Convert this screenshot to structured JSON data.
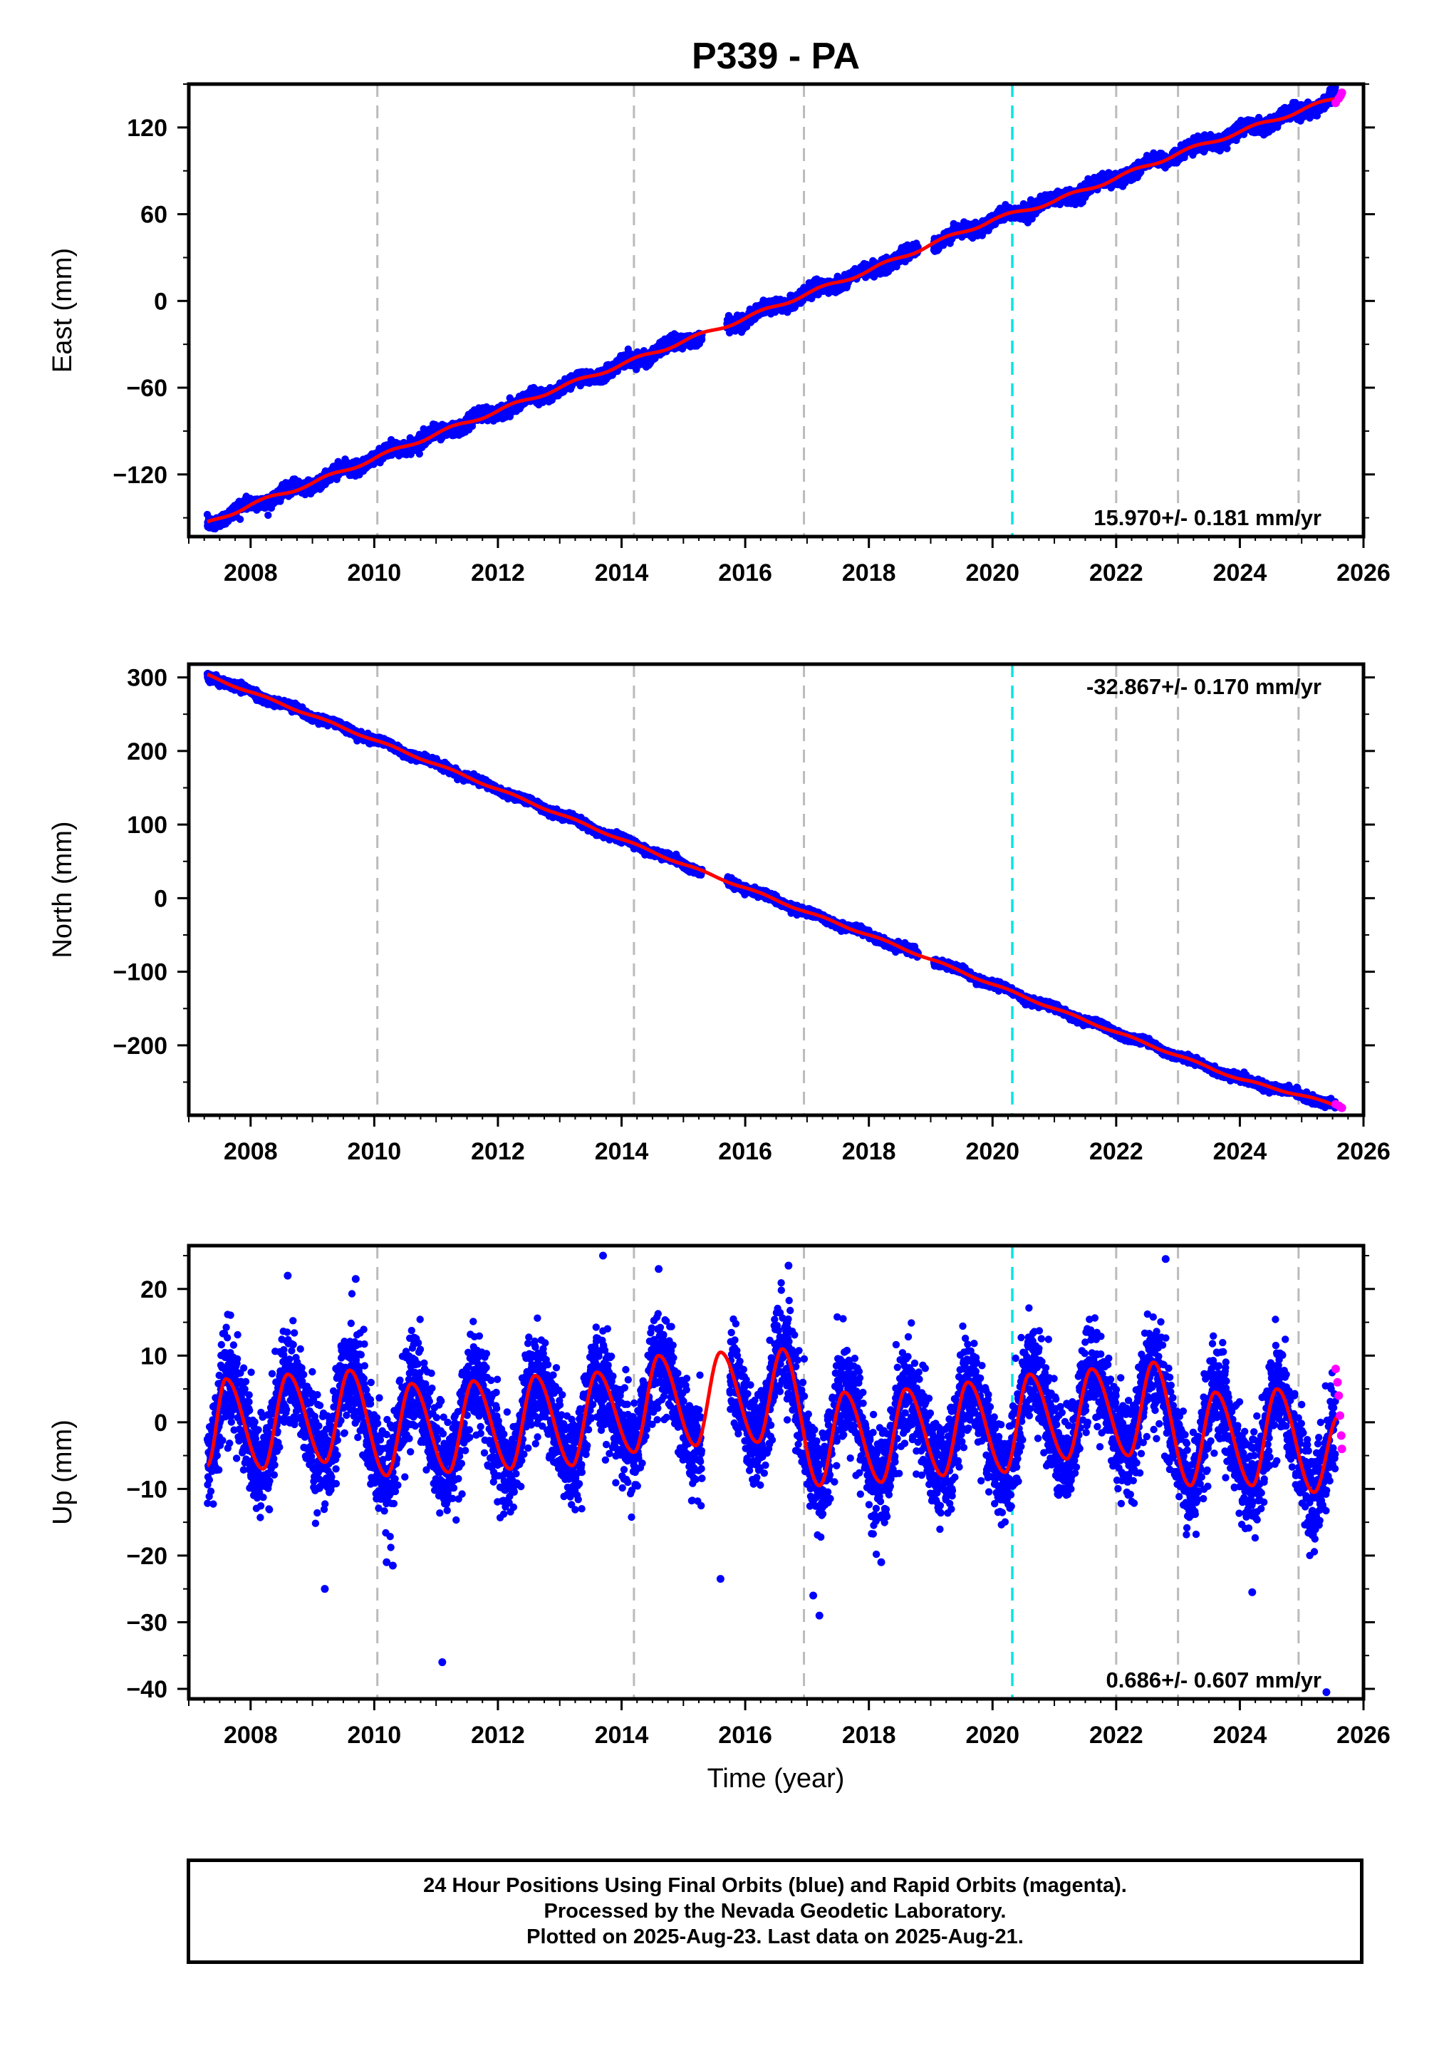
{
  "title": "P339 - PA",
  "xlabel": "Time (year)",
  "x_ticks": [
    "2008",
    "2010",
    "2012",
    "2014",
    "2016",
    "2018",
    "2020",
    "2022",
    "2024",
    "2026"
  ],
  "colors": {
    "final_orbits": "#0000ff",
    "rapid_orbits": "#ff00ff",
    "model": "#ff0000",
    "equipment_change": "#bbbbbb",
    "earthquake": "#00e5e5"
  },
  "footer": {
    "line1": "24 Hour Positions Using Final Orbits (blue) and Rapid Orbits (magenta).",
    "line2": "Processed by the Nevada Geodetic Laboratory.",
    "line3": "Plotted on 2025-Aug-23. Last data on 2025-Aug-21."
  },
  "chart_data": [
    {
      "type": "scatter",
      "component": "East",
      "ylabel": "East (mm)",
      "xlim": [
        2007.0,
        2026.0
      ],
      "ylim": [
        -163,
        150
      ],
      "yticks": [
        "120",
        "60",
        "0",
        "−60",
        "−120"
      ],
      "ytick_values": [
        120,
        60,
        0,
        -60,
        -120
      ],
      "rate_label": "15.970+/- 0.181 mm/yr",
      "rate_label_position": "bottom-right",
      "velocity": 15.97,
      "x": [
        2007.3,
        2008.0,
        2009.0,
        2010.0,
        2011.0,
        2012.0,
        2013.0,
        2014.0,
        2015.0,
        2016.0,
        2017.0,
        2018.0,
        2019.0,
        2020.0,
        2021.0,
        2022.0,
        2023.0,
        2024.0,
        2025.0,
        2025.6
      ],
      "y": [
        -154,
        -141,
        -126,
        -109,
        -92,
        -76,
        -60,
        -44,
        -28,
        -12,
        5,
        21,
        39,
        56,
        69,
        85,
        102,
        117,
        132,
        141
      ],
      "model": {
        "type": "line",
        "x": [
          2007.3,
          2008.0,
          2009.0,
          2010.0,
          2011.0,
          2012.0,
          2013.0,
          2014.0,
          2015.0,
          2016.0,
          2017.0,
          2018.0,
          2019.0,
          2020.0,
          2021.0,
          2022.0,
          2023.0,
          2024.0,
          2025.0,
          2025.6
        ],
        "y": [
          -154,
          -141,
          -126,
          -109,
          -92,
          -76,
          -60,
          -44,
          -28,
          -12,
          5,
          21,
          39,
          56,
          69,
          85,
          102,
          117,
          132,
          141
        ]
      },
      "rapid_orbit_points": {
        "x": [
          2025.55,
          2025.6,
          2025.63,
          2025.65
        ],
        "y": [
          137,
          140,
          142,
          144
        ]
      },
      "equipment_changes": [
        2010.05,
        2014.2,
        2016.95,
        2022.0,
        2023.0,
        2024.95
      ],
      "earthquakes": [
        2020.32
      ]
    },
    {
      "type": "scatter",
      "component": "North",
      "ylabel": "North (mm)",
      "xlim": [
        2007.0,
        2026.0
      ],
      "ylim": [
        -295,
        318
      ],
      "yticks": [
        "300",
        "200",
        "100",
        "0",
        "−100",
        "−200"
      ],
      "ytick_values": [
        300,
        200,
        100,
        0,
        -100,
        -200
      ],
      "rate_label": "-32.867+/- 0.170 mm/yr",
      "rate_label_position": "top-right",
      "velocity": -32.867,
      "x": [
        2007.3,
        2008.0,
        2009.0,
        2010.0,
        2011.0,
        2012.0,
        2013.0,
        2014.0,
        2015.0,
        2016.0,
        2017.0,
        2018.0,
        2019.0,
        2020.0,
        2021.0,
        2022.0,
        2023.0,
        2024.0,
        2025.0,
        2025.6
      ],
      "y": [
        303,
        280,
        248,
        215,
        182,
        148,
        114,
        80,
        46,
        14,
        -19,
        -50,
        -83,
        -117,
        -150,
        -182,
        -214,
        -246,
        -268,
        -283
      ],
      "model": {
        "type": "line",
        "x": [
          2007.3,
          2008.0,
          2009.0,
          2010.0,
          2011.0,
          2012.0,
          2013.0,
          2014.0,
          2015.0,
          2016.0,
          2017.0,
          2018.0,
          2019.0,
          2020.0,
          2021.0,
          2022.0,
          2023.0,
          2024.0,
          2025.0,
          2025.6
        ],
        "y": [
          303,
          280,
          248,
          215,
          182,
          148,
          114,
          80,
          46,
          14,
          -19,
          -50,
          -83,
          -117,
          -150,
          -182,
          -214,
          -246,
          -268,
          -283
        ]
      },
      "rapid_orbit_points": {
        "x": [
          2025.55,
          2025.6,
          2025.63,
          2025.65
        ],
        "y": [
          -280,
          -282,
          -284,
          -285
        ]
      },
      "equipment_changes": [
        2010.05,
        2014.2,
        2016.95,
        2022.0,
        2023.0,
        2024.95
      ],
      "earthquakes": [
        2020.32
      ]
    },
    {
      "type": "scatter",
      "component": "Up",
      "ylabel": "Up (mm)",
      "xlim": [
        2007.0,
        2026.0
      ],
      "ylim": [
        -41.5,
        26.5
      ],
      "yticks": [
        "20",
        "10",
        "0",
        "−10",
        "−20",
        "−30",
        "−40"
      ],
      "ytick_values": [
        20,
        10,
        0,
        -10,
        -20,
        -30,
        -40
      ],
      "rate_label": "0.686+/- 0.607 mm/yr",
      "rate_label_position": "bottom-right",
      "velocity": 0.686,
      "seasonal_peaks": [
        [
          2007.6,
          6.5
        ],
        [
          2008.6,
          7.2
        ],
        [
          2009.6,
          7.8
        ],
        [
          2010.6,
          5.8
        ],
        [
          2011.6,
          6.2
        ],
        [
          2012.6,
          7.0
        ],
        [
          2013.6,
          7.5
        ],
        [
          2014.6,
          10.0
        ],
        [
          2015.6,
          10.5
        ],
        [
          2016.6,
          11.0
        ],
        [
          2017.6,
          4.5
        ],
        [
          2018.6,
          5.0
        ],
        [
          2019.6,
          6.0
        ],
        [
          2020.6,
          7.2
        ],
        [
          2021.6,
          8.0
        ],
        [
          2022.6,
          9.0
        ],
        [
          2023.6,
          4.5
        ],
        [
          2024.6,
          5.0
        ]
      ],
      "seasonal_troughs": [
        [
          2007.3,
          -6.5
        ],
        [
          2008.2,
          -7.0
        ],
        [
          2009.2,
          -6.0
        ],
        [
          2010.2,
          -8.0
        ],
        [
          2011.2,
          -7.5
        ],
        [
          2012.2,
          -7.0
        ],
        [
          2013.2,
          -6.5
        ],
        [
          2014.2,
          -4.5
        ],
        [
          2015.2,
          -3.5
        ],
        [
          2016.2,
          -3.0
        ],
        [
          2017.2,
          -9.5
        ],
        [
          2018.2,
          -9.0
        ],
        [
          2019.2,
          -8.0
        ],
        [
          2020.2,
          -7.5
        ],
        [
          2021.2,
          -5.5
        ],
        [
          2022.2,
          -5.0
        ],
        [
          2023.2,
          -9.5
        ],
        [
          2024.2,
          -9.5
        ],
        [
          2025.2,
          -10.5
        ],
        [
          2025.6,
          1.0
        ]
      ],
      "outliers": {
        "x": [
          2008.6,
          2009.2,
          2009.7,
          2010.2,
          2010.3,
          2011.1,
          2013.7,
          2014.6,
          2015.6,
          2016.7,
          2017.1,
          2017.2,
          2018.2,
          2022.8,
          2024.2,
          2025.4
        ],
        "y": [
          22,
          -25,
          21.5,
          -21,
          -21.5,
          -36,
          25,
          23,
          -23.5,
          23.5,
          -26,
          -29,
          -21,
          24.5,
          -25.5,
          -40.5
        ]
      },
      "rapid_orbit_points": {
        "x": [
          2025.55,
          2025.58,
          2025.6,
          2025.62,
          2025.64,
          2025.65
        ],
        "y": [
          8,
          6,
          4,
          1,
          -2,
          -4
        ]
      },
      "equipment_changes": [
        2010.05,
        2014.2,
        2016.95,
        2022.0,
        2023.0,
        2024.95
      ],
      "earthquakes": [
        2020.32
      ]
    }
  ]
}
